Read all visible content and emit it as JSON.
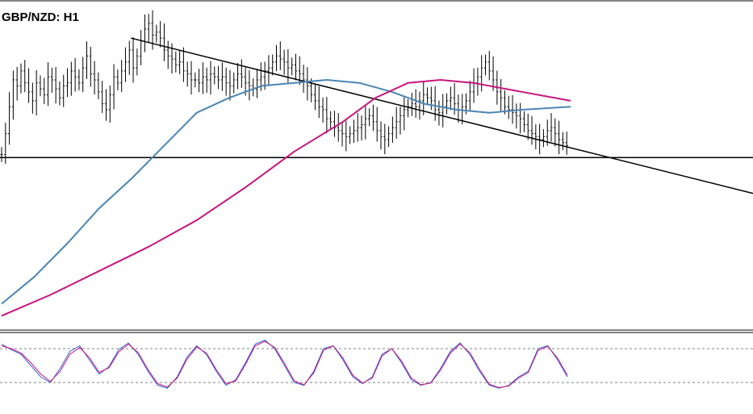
{
  "chart_data": [
    {
      "type": "line",
      "title": "GBP/NZD: H1",
      "panel": "price",
      "colors": {
        "bars": "#000000",
        "ma_fast": "#4a86b4",
        "ma_slow": "#c8147c",
        "trendlines": "#000000"
      },
      "x_range": [
        0,
        175
      ],
      "ylim": [
        0,
        100
      ],
      "bars_close": [
        55,
        62,
        71,
        80,
        78,
        83,
        79,
        76,
        73,
        79,
        77,
        75,
        81,
        80,
        77,
        74,
        78,
        79,
        83,
        81,
        79,
        84,
        88,
        82,
        80,
        76,
        72,
        70,
        75,
        81,
        79,
        83,
        86,
        90,
        84,
        88,
        93,
        97,
        99,
        95,
        96,
        94,
        90,
        88,
        87,
        85,
        86,
        83,
        82,
        80,
        80,
        79,
        81,
        80,
        82,
        81,
        80,
        81,
        79,
        78,
        80,
        82,
        81,
        79,
        78,
        77,
        80,
        81,
        83,
        84,
        86,
        88,
        87,
        86,
        84,
        85,
        83,
        82,
        80,
        78,
        75,
        73,
        71,
        70,
        67,
        66,
        64,
        63,
        62,
        61,
        62,
        63,
        64,
        65,
        67,
        68,
        66,
        63,
        61,
        60,
        62,
        64,
        66,
        68,
        70,
        71,
        72,
        71,
        73,
        75,
        74,
        73,
        70,
        69,
        71,
        73,
        74,
        72,
        70,
        71,
        73,
        76,
        79,
        81,
        84,
        86,
        83,
        80,
        76,
        74,
        71,
        70,
        69,
        68,
        67,
        65,
        63,
        62,
        61,
        60,
        61,
        63,
        64,
        62,
        60,
        59,
        58
      ],
      "series": [
        {
          "name": "",
          "role": "ma_fast",
          "x": [
            0,
            10,
            20,
            30,
            40,
            50,
            60,
            70,
            80,
            90,
            100,
            110,
            120,
            130,
            140,
            150,
            160,
            175
          ],
          "y": [
            5,
            14,
            25,
            37,
            47,
            58,
            69,
            74,
            78,
            79,
            80,
            79,
            76,
            72,
            70,
            69,
            70,
            71
          ]
        },
        {
          "name": "",
          "role": "ma_slow",
          "x": [
            0,
            15,
            30,
            45,
            60,
            75,
            90,
            105,
            115,
            125,
            135,
            145,
            160,
            175
          ],
          "y": [
            1,
            8,
            16,
            24,
            33,
            44,
            56,
            66,
            74,
            79,
            80,
            79,
            76,
            73
          ]
        }
      ],
      "trendlines": [
        {
          "role": "descending",
          "from": [
            40,
            94
          ],
          "to": [
            230,
            42
          ]
        },
        {
          "role": "horizontal",
          "from": [
            0,
            54
          ],
          "to": [
            230,
            54
          ]
        }
      ]
    },
    {
      "type": "line",
      "panel": "oscillator",
      "colors": {
        "main": "#3a5fd0",
        "signal": "#c8147c",
        "levels": "#808080"
      },
      "levels": [
        20,
        80
      ],
      "ylim": [
        0,
        100
      ],
      "series": [
        {
          "name": "",
          "role": "main",
          "x": [
            0,
            3,
            6,
            9,
            12,
            15,
            18,
            21,
            24,
            27,
            30,
            33,
            36,
            39,
            42,
            45,
            48,
            51,
            54,
            57,
            60,
            63,
            66,
            69,
            72,
            75,
            78,
            81,
            84,
            87,
            90,
            93,
            96,
            99,
            102,
            105,
            108,
            111,
            114,
            117,
            120,
            123,
            126,
            129,
            132,
            135,
            138,
            141,
            144,
            147,
            150,
            153,
            156,
            159,
            162,
            165,
            168,
            171,
            174
          ],
          "y": [
            88,
            78,
            70,
            50,
            30,
            20,
            45,
            75,
            85,
            60,
            35,
            48,
            78,
            90,
            70,
            40,
            15,
            10,
            30,
            65,
            85,
            70,
            40,
            15,
            25,
            55,
            88,
            95,
            80,
            50,
            20,
            15,
            40,
            80,
            85,
            60,
            30,
            18,
            30,
            70,
            80,
            55,
            25,
            15,
            20,
            45,
            75,
            90,
            70,
            40,
            15,
            10,
            15,
            30,
            40,
            80,
            85,
            60,
            30
          ]
        },
        {
          "name": "",
          "role": "signal",
          "x": [
            0,
            3,
            6,
            9,
            12,
            15,
            18,
            21,
            24,
            27,
            30,
            33,
            36,
            39,
            42,
            45,
            48,
            51,
            54,
            57,
            60,
            63,
            66,
            69,
            72,
            75,
            78,
            81,
            84,
            87,
            90,
            93,
            96,
            99,
            102,
            105,
            108,
            111,
            114,
            117,
            120,
            123,
            126,
            129,
            132,
            135,
            138,
            141,
            144,
            147,
            150,
            153,
            156,
            159,
            162,
            165,
            168,
            171,
            174
          ],
          "y": [
            85,
            80,
            72,
            55,
            35,
            22,
            40,
            70,
            82,
            64,
            38,
            46,
            74,
            88,
            73,
            43,
            18,
            12,
            28,
            61,
            83,
            72,
            43,
            18,
            23,
            52,
            85,
            93,
            82,
            54,
            23,
            16,
            37,
            77,
            85,
            63,
            33,
            19,
            28,
            67,
            80,
            58,
            28,
            16,
            19,
            42,
            72,
            88,
            73,
            43,
            17,
            11,
            14,
            28,
            38,
            77,
            84,
            63,
            33
          ]
        }
      ]
    }
  ]
}
